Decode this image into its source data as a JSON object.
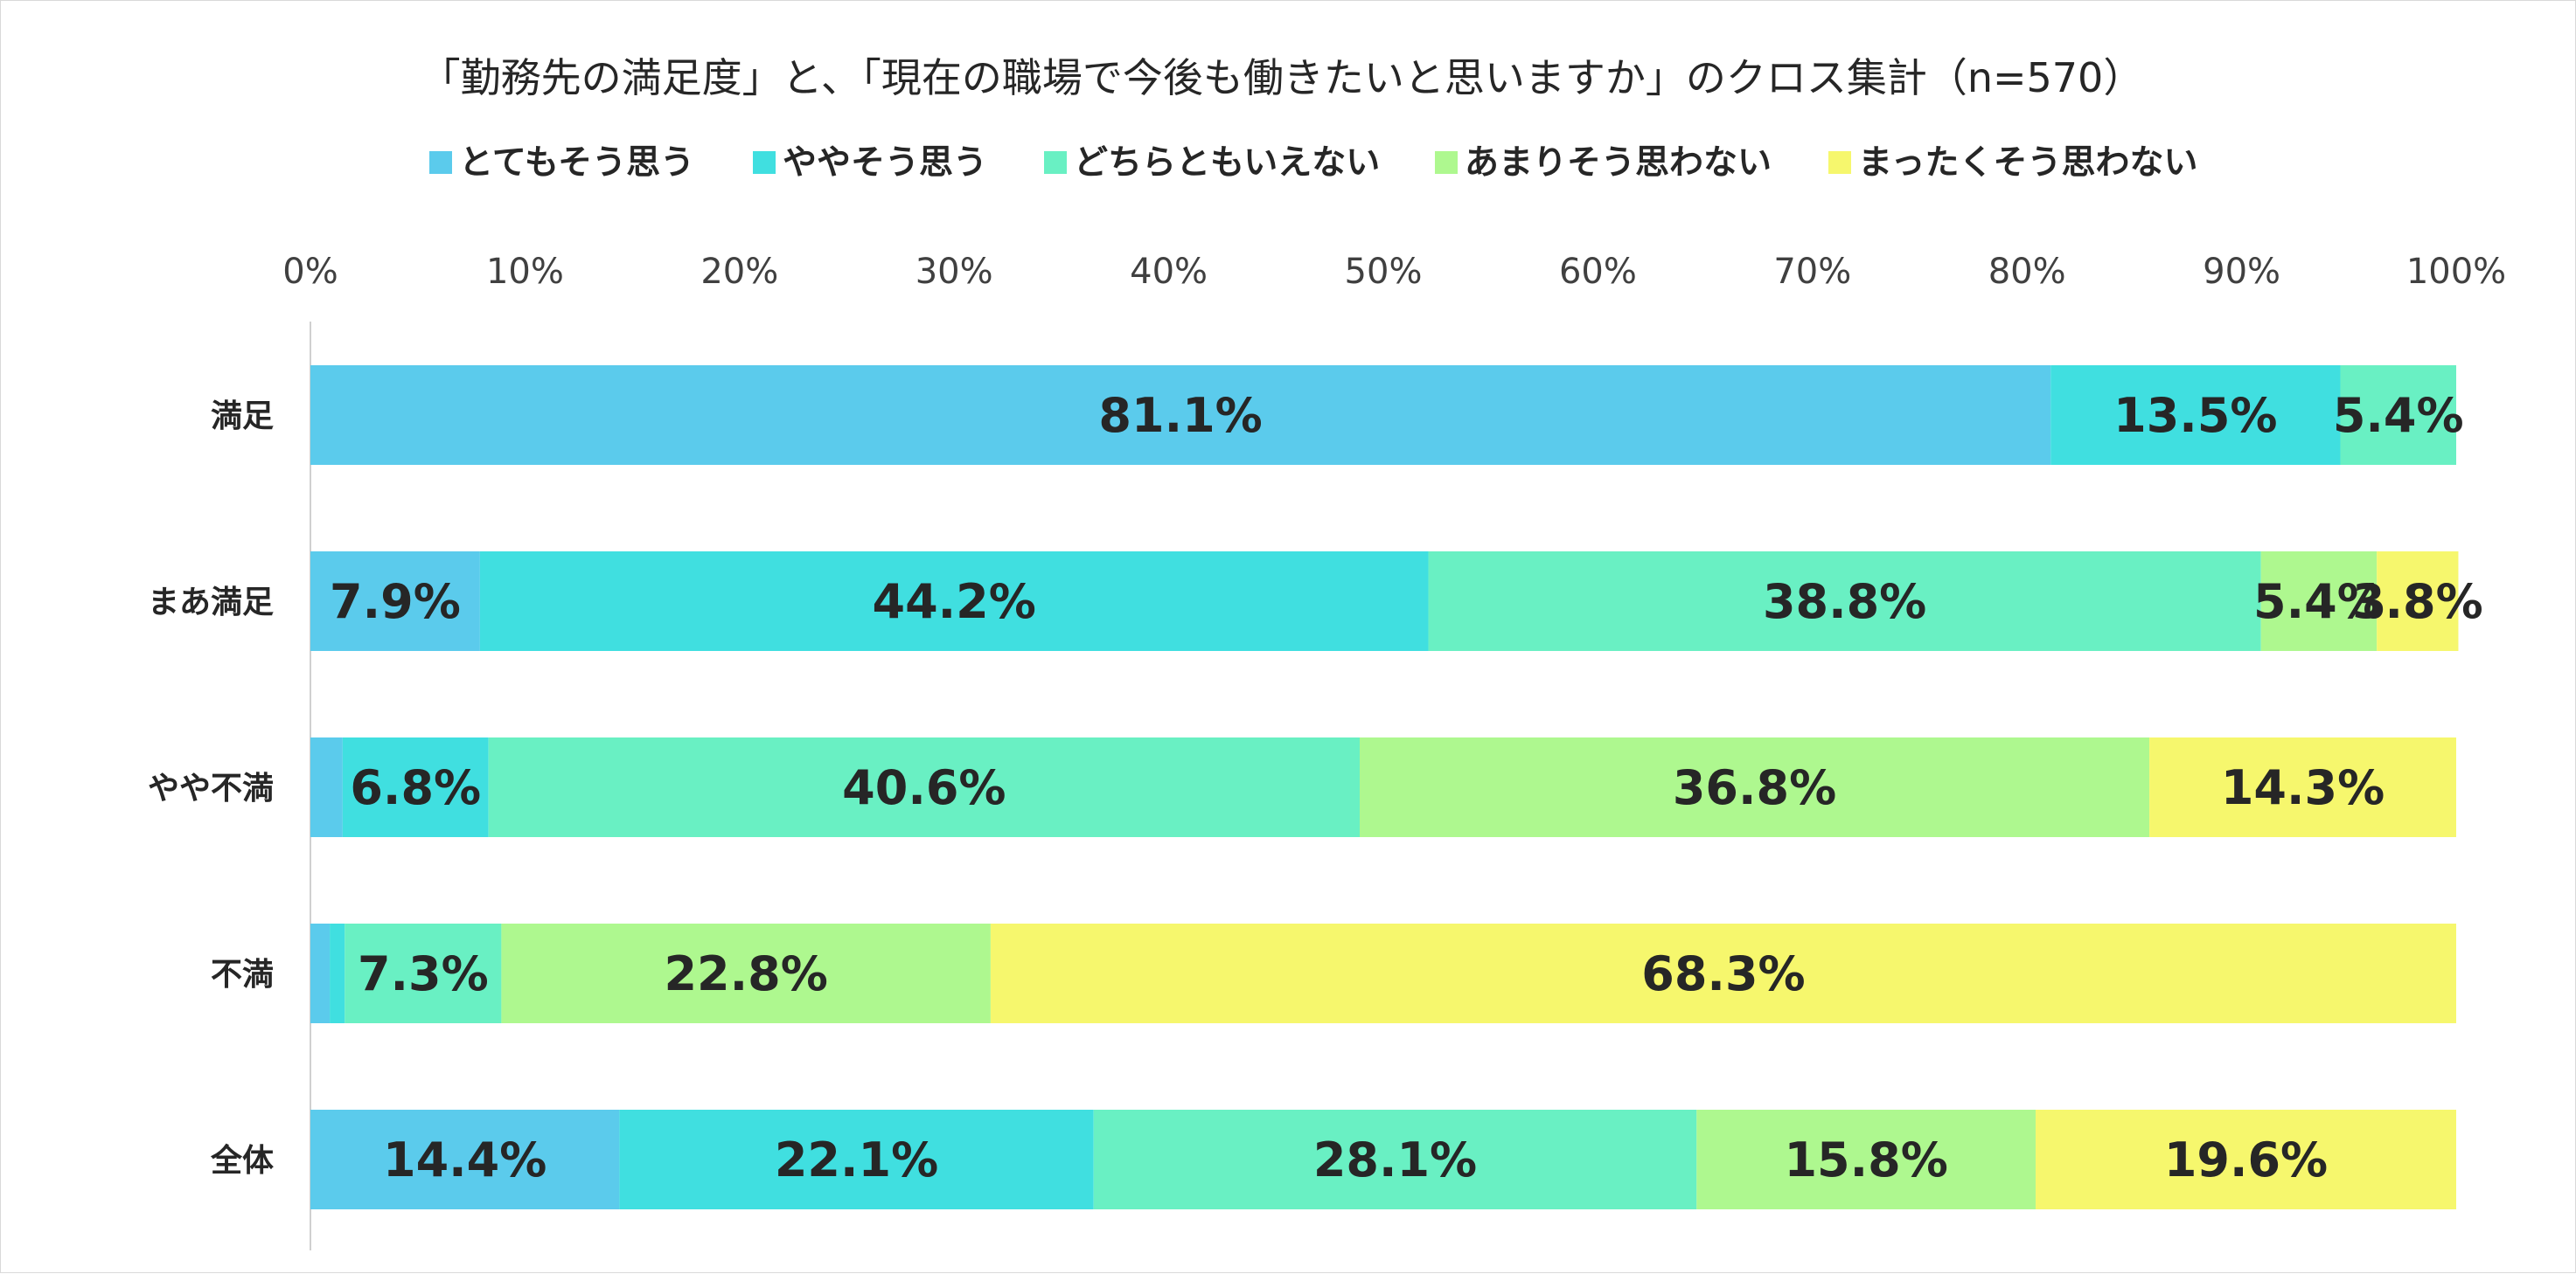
{
  "chart_data": {
    "type": "bar",
    "orientation": "horizontal-stacked-percent",
    "title": "「勤務先の満足度」と、「現在の職場で今後も働きたいと思いますか」のクロス集計（n=570）",
    "legend_position": "top",
    "xlim": [
      0,
      100
    ],
    "x_ticks": [
      "0%",
      "10%",
      "20%",
      "30%",
      "40%",
      "50%",
      "60%",
      "70%",
      "80%",
      "90%",
      "100%"
    ],
    "categories": [
      "満足",
      "まあ満足",
      "やや不満",
      "不満",
      "全体"
    ],
    "series": [
      {
        "name": "とてもそう思う",
        "color": "#5bcbec",
        "values": [
          81.1,
          7.9,
          1.5,
          0.9,
          14.4
        ],
        "labels": [
          "81.1%",
          "7.9%",
          "",
          "",
          "14.4%"
        ]
      },
      {
        "name": "ややそう思う",
        "color": "#40dfe0",
        "values": [
          13.5,
          44.2,
          6.8,
          0.7,
          22.1
        ],
        "labels": [
          "13.5%",
          "44.2%",
          "6.8%",
          "",
          "22.1%"
        ]
      },
      {
        "name": "どちらともいえない",
        "color": "#69f0c3",
        "values": [
          5.4,
          38.8,
          40.6,
          7.3,
          28.1
        ],
        "labels": [
          "5.4%",
          "38.8%",
          "40.6%",
          "7.3%",
          "28.1%"
        ]
      },
      {
        "name": "あまりそう思わない",
        "color": "#aef88f",
        "values": [
          0,
          5.4,
          36.8,
          22.8,
          15.8
        ],
        "labels": [
          "",
          "5.4%",
          "36.8%",
          "22.8%",
          "15.8%"
        ]
      },
      {
        "name": "まったくそう思わない",
        "color": "#f6f76d",
        "values": [
          0,
          3.8,
          14.3,
          68.3,
          19.6
        ],
        "labels": [
          "",
          "3.8%",
          "14.3%",
          "68.3%",
          "19.6%"
        ]
      }
    ]
  }
}
